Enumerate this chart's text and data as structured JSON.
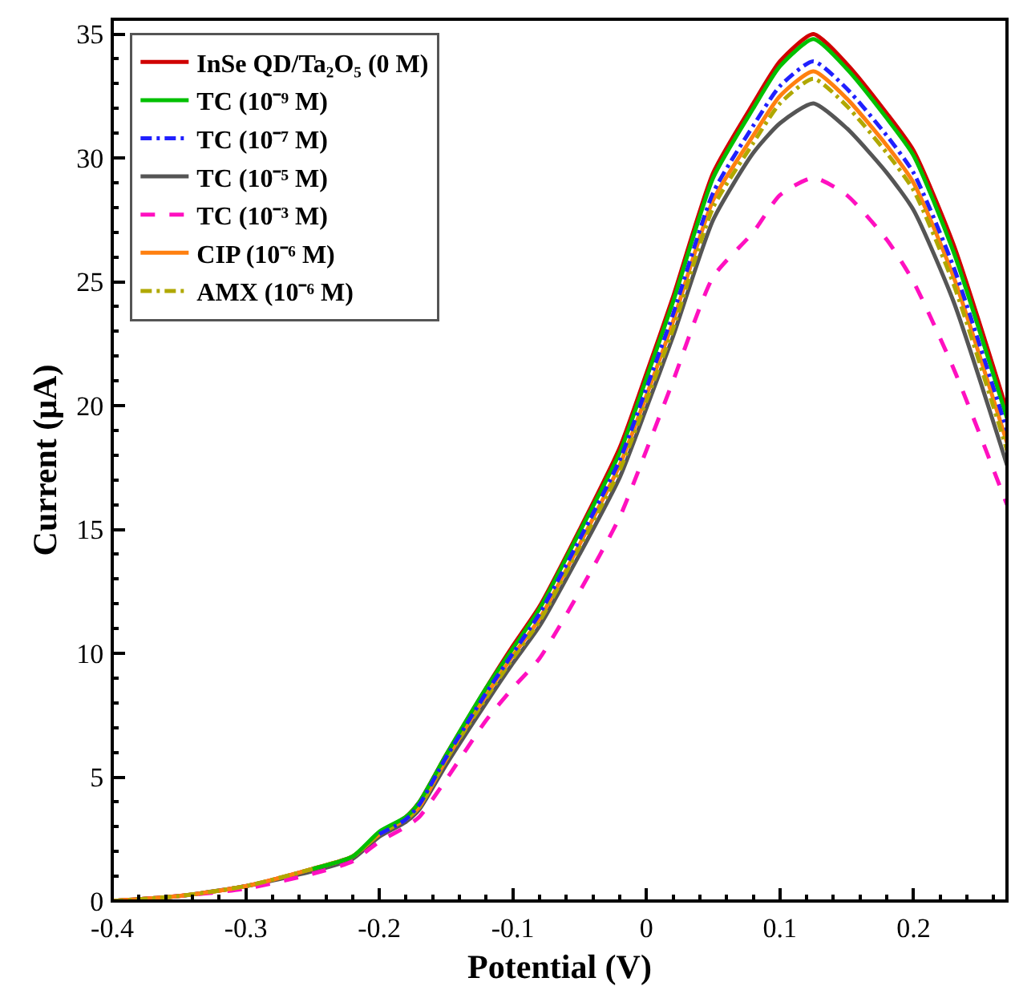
{
  "chart_data": {
    "type": "line",
    "xlabel": "Potential (V)",
    "ylabel": "Current (μA)",
    "x": [
      -0.4,
      -0.35,
      -0.3,
      -0.25,
      -0.22,
      -0.2,
      -0.18,
      -0.17,
      -0.15,
      -0.12,
      -0.1,
      -0.08,
      -0.05,
      -0.02,
      0,
      0.02,
      0.05,
      0.08,
      0.1,
      0.125,
      0.15,
      0.18,
      0.2,
      0.23,
      0.27
    ],
    "series": [
      {
        "name": "InSe QD/Ta₂O₅ (0 M)",
        "color": "#d00000",
        "line_style": "solid",
        "values": [
          0,
          0.2,
          0.6,
          1.3,
          1.8,
          2.7,
          3.4,
          4.0,
          5.9,
          8.6,
          10.3,
          11.9,
          15.0,
          18.3,
          21.3,
          24.4,
          29.4,
          32.2,
          33.9,
          35.0,
          33.8,
          31.8,
          30.3,
          26.5,
          19.8
        ]
      },
      {
        "name": "TC (10⁻⁹ M)",
        "color": "#00c000",
        "line_style": "solid",
        "values": [
          null,
          null,
          null,
          1.3,
          1.8,
          2.8,
          3.4,
          4.0,
          5.9,
          8.6,
          10.2,
          11.8,
          14.9,
          18.1,
          21.1,
          24.2,
          29.2,
          32.0,
          33.7,
          34.8,
          33.6,
          31.6,
          30.1,
          26.2,
          19.5
        ]
      },
      {
        "name": "TC (10⁻⁷ M)",
        "color": "#2020ff",
        "line_style": "dashdot",
        "values": [
          null,
          null,
          null,
          null,
          null,
          2.7,
          3.3,
          3.9,
          5.8,
          8.4,
          10.0,
          11.6,
          14.6,
          17.8,
          20.7,
          23.7,
          28.6,
          31.3,
          32.9,
          33.9,
          32.8,
          30.9,
          29.4,
          25.6,
          19.0
        ]
      },
      {
        "name": "TC (10⁻⁵ M)",
        "color": "#555555",
        "line_style": "solid",
        "values": [
          0,
          0.2,
          0.6,
          1.2,
          1.7,
          2.6,
          3.2,
          3.7,
          5.5,
          8.0,
          9.6,
          11.1,
          14.0,
          17.1,
          19.9,
          22.8,
          27.5,
          30.2,
          31.4,
          32.2,
          31.2,
          29.4,
          27.9,
          24.2,
          17.6
        ]
      },
      {
        "name": "TC (10⁻³ M)",
        "color": "#ff10c0",
        "line_style": "dashed",
        "values": [
          0,
          0.2,
          0.5,
          1.1,
          1.6,
          2.4,
          3.0,
          3.4,
          4.9,
          7.3,
          8.6,
          9.8,
          12.5,
          15.5,
          18.2,
          21.0,
          25.2,
          27.0,
          28.5,
          29.2,
          28.5,
          26.7,
          25.0,
          21.5,
          16.0
        ]
      },
      {
        "name": "CIP (10⁻⁶ M)",
        "color": "#ff8010",
        "line_style": "solid",
        "values": [
          0,
          0.2,
          0.6,
          1.3,
          1.8,
          2.7,
          3.3,
          3.8,
          5.7,
          8.3,
          9.9,
          11.4,
          14.4,
          17.6,
          20.4,
          23.4,
          28.3,
          30.9,
          32.5,
          33.5,
          32.4,
          30.5,
          29.0,
          25.2,
          18.5
        ]
      },
      {
        "name": "AMX (10⁻⁶ M)",
        "color": "#b0a800",
        "line_style": "dashdot",
        "values": [
          0,
          0.2,
          0.6,
          1.3,
          1.8,
          2.7,
          3.3,
          3.8,
          5.7,
          8.2,
          9.8,
          11.3,
          14.3,
          17.4,
          20.2,
          23.1,
          28.0,
          30.6,
          32.2,
          33.2,
          32.1,
          30.2,
          28.7,
          24.9,
          18.2
        ]
      }
    ],
    "xlim": [
      -0.4,
      0.27
    ],
    "xticks": [
      -0.4,
      -0.3,
      -0.2,
      -0.1,
      0,
      0.1,
      0.2
    ],
    "ylim": [
      0,
      35.6
    ],
    "yticks": [
      0,
      5,
      10,
      15,
      20,
      25,
      30,
      35
    ],
    "legend": "top left",
    "marker": "none"
  }
}
